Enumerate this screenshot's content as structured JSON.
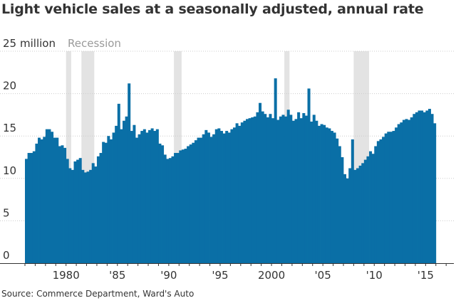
{
  "title": "Light vehicle sales at a seasonally adjusted, annual rate",
  "source": "Source: Commerce Department, Ward's Auto",
  "colors": {
    "bar": "#0a6fa6",
    "recession": "#e3e3e3",
    "grid": "#cccccc",
    "axis": "#333333"
  },
  "chart_data": {
    "type": "bar",
    "title": "Light vehicle sales at a seasonally adjusted, annual rate",
    "ylabel": "",
    "unit_label": "million",
    "legend": [
      {
        "label": "Recession"
      }
    ],
    "ylim": [
      0,
      25
    ],
    "yticks": [
      {
        "value": 25,
        "label": "25"
      },
      {
        "value": 20,
        "label": "20"
      },
      {
        "value": 15,
        "label": "15"
      },
      {
        "value": 10,
        "label": "10"
      },
      {
        "value": 5,
        "label": "5"
      },
      {
        "value": 0,
        "label": "0"
      }
    ],
    "xlim": [
      1976,
      2017.75
    ],
    "xticks": [
      {
        "value": 1980,
        "label": "1980"
      },
      {
        "value": 1985,
        "label": "'85"
      },
      {
        "value": 1990,
        "label": "'90"
      },
      {
        "value": 1995,
        "label": "'95"
      },
      {
        "value": 2000,
        "label": "2000"
      },
      {
        "value": 2005,
        "label": "'05"
      },
      {
        "value": 2010,
        "label": "'10"
      },
      {
        "value": 2015,
        "label": "'15"
      }
    ],
    "recessions": [
      [
        1980.0,
        1980.5
      ],
      [
        1981.5,
        1982.75
      ],
      [
        1990.5,
        1991.25
      ],
      [
        2001.25,
        2001.75
      ],
      [
        2008.0,
        2009.5
      ]
    ],
    "grid": true,
    "legend_position": "top-left",
    "period": "quarterly",
    "start": 1976.0,
    "values": [
      12.3,
      13.0,
      13.0,
      13.2,
      14.1,
      14.8,
      14.6,
      14.9,
      15.8,
      15.8,
      15.5,
      14.8,
      14.8,
      13.8,
      13.9,
      13.6,
      12.3,
      11.2,
      11.0,
      12.0,
      12.2,
      12.4,
      11.0,
      10.7,
      10.8,
      11.0,
      11.8,
      11.4,
      12.6,
      13.0,
      14.3,
      14.2,
      15.0,
      14.6,
      15.4,
      16.2,
      18.8,
      15.8,
      16.8,
      17.3,
      21.2,
      15.6,
      16.3,
      14.8,
      15.2,
      15.6,
      15.8,
      15.4,
      15.7,
      15.9,
      15.6,
      15.8,
      14.1,
      13.9,
      12.8,
      12.3,
      12.4,
      12.6,
      13.0,
      13.0,
      13.3,
      13.4,
      13.5,
      13.8,
      14.0,
      14.2,
      14.5,
      14.8,
      14.8,
      15.2,
      15.7,
      15.4,
      14.9,
      15.2,
      15.8,
      15.9,
      15.6,
      15.3,
      15.6,
      15.4,
      15.8,
      16.0,
      16.5,
      16.2,
      16.6,
      16.8,
      17.0,
      17.1,
      17.2,
      17.3,
      17.8,
      18.9,
      17.9,
      17.6,
      17.2,
      17.6,
      17.1,
      21.8,
      16.9,
      17.3,
      17.5,
      17.3,
      18.1,
      17.5,
      16.8,
      17.0,
      17.8,
      17.1,
      17.7,
      17.4,
      20.6,
      16.7,
      17.5,
      16.8,
      16.2,
      16.4,
      16.3,
      16.0,
      15.9,
      15.6,
      15.4,
      14.7,
      13.8,
      12.5,
      10.5,
      10.0,
      11.2,
      14.6,
      11.0,
      11.2,
      11.5,
      11.8,
      12.2,
      12.6,
      13.2,
      12.9,
      13.8,
      14.4,
      14.6,
      14.9,
      15.3,
      15.5,
      15.5,
      15.6,
      16.0,
      16.4,
      16.6,
      16.9,
      17.0,
      16.9,
      17.2,
      17.6,
      17.8,
      18.0,
      18.0,
      17.8,
      18.0,
      18.2,
      17.6,
      16.5
    ]
  }
}
